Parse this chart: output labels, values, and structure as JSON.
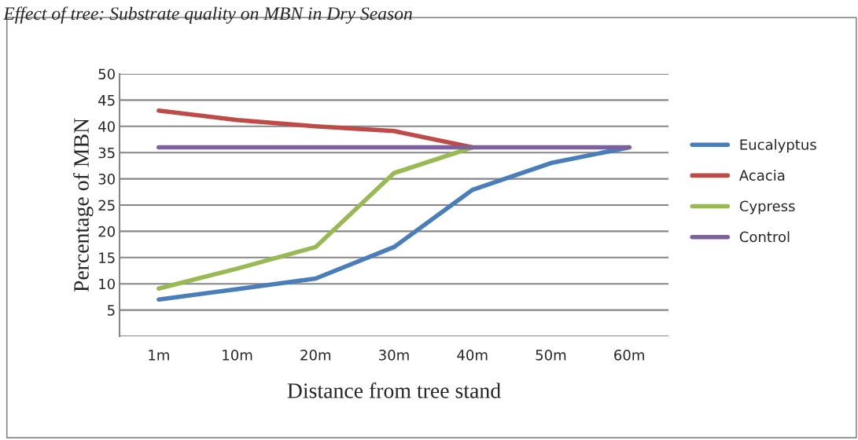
{
  "chart_data": {
    "type": "line",
    "title": "Effect of tree: Substrate quality on MBN in Dry Season",
    "xlabel": "Distance from tree stand",
    "ylabel": "Percentage of MBN",
    "categories": [
      "1m",
      "10m",
      "20m",
      "30m",
      "40m",
      "50m",
      "60m"
    ],
    "series": [
      {
        "name": "Eucalyptus",
        "color": "#4a7ebb",
        "values": [
          7,
          9,
          11,
          17,
          27.9,
          33,
          36
        ]
      },
      {
        "name": "Acacia",
        "color": "#be4b48",
        "values": [
          43,
          41.2,
          40,
          39.1,
          36,
          null,
          null
        ]
      },
      {
        "name": "Cypress",
        "color": "#98b954",
        "values": [
          9.1,
          12.9,
          17,
          31.1,
          36,
          null,
          null
        ]
      },
      {
        "name": "Control",
        "color": "#7d60a0",
        "values": [
          36,
          36,
          36,
          36,
          36,
          36,
          36
        ]
      }
    ],
    "ylim": [
      0,
      50
    ],
    "yticks": [
      {
        "value": 0,
        "label": null
      },
      5,
      10,
      15,
      20,
      25,
      30,
      35,
      40,
      45,
      50
    ],
    "grid": "y",
    "legend": "right",
    "marker": "none",
    "line_style": "solid"
  }
}
